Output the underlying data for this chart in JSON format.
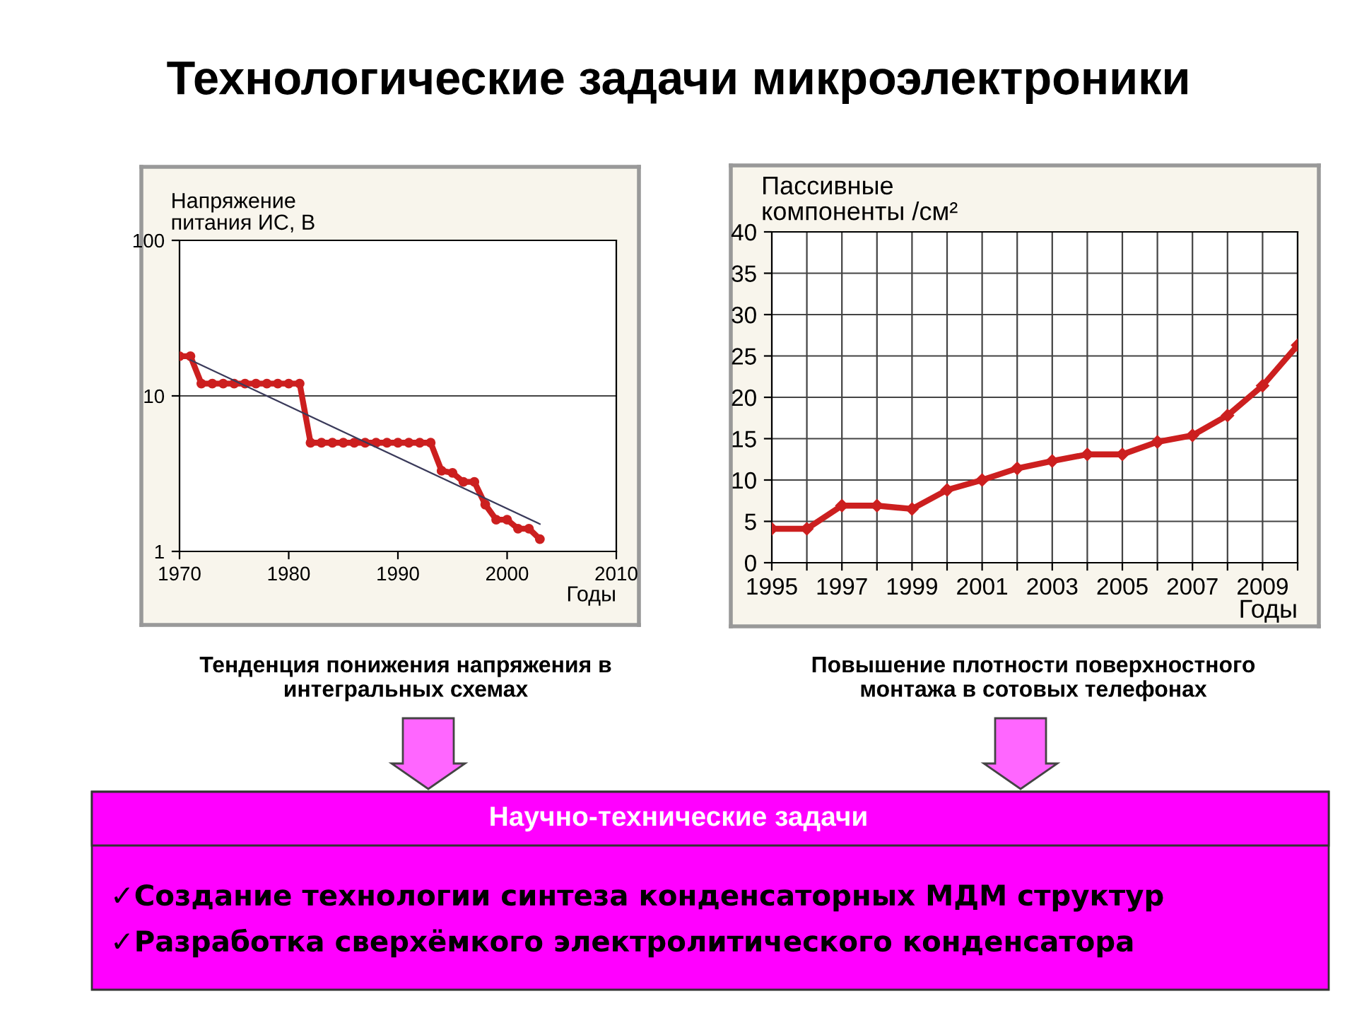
{
  "chart_data": [
    {
      "type": "line",
      "xlabel": "Годы",
      "ylabel": "Напряжение\nпитания ИС, В",
      "log": "y",
      "xlim": [
        1970,
        2010
      ],
      "xticks": [
        1970,
        1980,
        1990,
        2000,
        2010
      ],
      "ylim": [
        1,
        100
      ],
      "yticks": [
        1,
        10,
        100
      ],
      "grid": "y",
      "marker": "circle",
      "line_style": "solid",
      "series": [
        {
          "color": "#cc1f1f",
          "x": [
            1970,
            1971,
            1972,
            1973,
            1974,
            1975,
            1976,
            1977,
            1978,
            1979,
            1980,
            1981,
            1982,
            1983,
            1984,
            1985,
            1986,
            1987,
            1988,
            1989,
            1990,
            1991,
            1992,
            1993,
            1994,
            1995,
            1996,
            1997,
            1998,
            1999,
            2000,
            2001,
            2002,
            2003
          ],
          "values": [
            18,
            18,
            12,
            12,
            12,
            12,
            12,
            12,
            12,
            12,
            12,
            12,
            5,
            5,
            5,
            5,
            5,
            5,
            5,
            5,
            5,
            5,
            5,
            5,
            3.3,
            3.2,
            2.8,
            2.8,
            2.0,
            1.6,
            1.6,
            1.4,
            1.4,
            1.2
          ]
        },
        {
          "color": "#3a3a5a",
          "type": "line",
          "marker": "none",
          "x": [
            1971,
            2003
          ],
          "values": [
            17,
            1.5
          ]
        }
      ],
      "annotations": [
        "Технологические задачи микроэлектроники",
        "Тенденция понижения напряжения в\nинтегральных схемах"
      ]
    },
    {
      "type": "line",
      "xlabel": "Годы",
      "ylabel": "Пассивные\nкомпоненты /см²",
      "xlim": [
        1995,
        2010
      ],
      "xticks": [
        1995,
        {
          "value": 1996,
          "label": null
        },
        1997,
        {
          "value": 1998,
          "label": null
        },
        1999,
        {
          "value": 2000,
          "label": null
        },
        2001,
        {
          "value": 2002,
          "label": null
        },
        2003,
        {
          "value": 2004,
          "label": null
        },
        2005,
        {
          "value": 2006,
          "label": null
        },
        2007,
        {
          "value": 2008,
          "label": null
        },
        2009,
        {
          "value": 2010,
          "label": null
        }
      ],
      "ylim": [
        0,
        40
      ],
      "yticks": [
        0,
        5,
        10,
        15,
        20,
        25,
        30,
        35,
        40
      ],
      "grid": true,
      "marker": "diamond",
      "line_style": "solid",
      "series": [
        {
          "color": "#cc1f1f",
          "x": [
            1995,
            1996,
            1997,
            1998,
            1999,
            2000,
            2001,
            2002,
            2003,
            2004,
            2005,
            2006,
            2007,
            2008,
            2009,
            2010
          ],
          "values": [
            4.1,
            4.1,
            6.9,
            6.9,
            6.5,
            8.8,
            10.0,
            11.4,
            12.3,
            13.1,
            13.1,
            14.6,
            15.4,
            17.8,
            21.4,
            26.3
          ]
        }
      ],
      "annotations": [
        "Повышение плотности поверхностного\nмонтажа в сотовых телефонах",
        "Научно-технические задачи",
        "✓Создание технологии синтеза конденсаторных МДМ структур",
        "✓Разработка сверхёмкого электролитического конденсатора"
      ]
    }
  ]
}
